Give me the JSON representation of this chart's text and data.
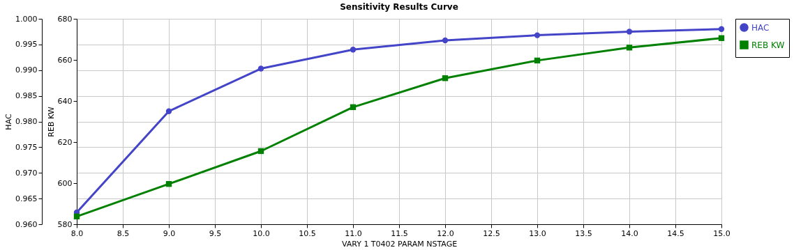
{
  "chart_data": {
    "type": "line",
    "title": "Sensitivity Results Curve",
    "xlabel": "VARY   1 T0402 PARAM NSTAGE",
    "ylabel": "HAC",
    "y2label": "REB KW",
    "x": [
      8,
      9,
      10,
      11,
      12,
      13,
      14,
      15
    ],
    "xlim": [
      8,
      15
    ],
    "xticks": [
      {
        "value": 8,
        "label": "8.0"
      },
      {
        "value": 8.5,
        "label": "8.5"
      },
      {
        "value": 9,
        "label": "9.0"
      },
      {
        "value": 9.5,
        "label": "9.5"
      },
      {
        "value": 10,
        "label": "10.0"
      },
      {
        "value": 10.5,
        "label": "10.5"
      },
      {
        "value": 11,
        "label": "11.0"
      },
      {
        "value": 11.5,
        "label": "11.5"
      },
      {
        "value": 12,
        "label": "12.0"
      },
      {
        "value": 12.5,
        "label": "12.5"
      },
      {
        "value": 13,
        "label": "13.0"
      },
      {
        "value": 13.5,
        "label": "13.5"
      },
      {
        "value": 14,
        "label": "14.0"
      },
      {
        "value": 14.5,
        "label": "14.5"
      },
      {
        "value": 15,
        "label": "15.0"
      }
    ],
    "ylim": [
      0.96,
      1.0
    ],
    "yticks": [
      {
        "value": 0.96,
        "label": "0.960"
      },
      0.965,
      {
        "value": 0.97,
        "label": "0.970"
      },
      0.975,
      {
        "value": 0.98,
        "label": "0.980"
      },
      0.985,
      {
        "value": 0.99,
        "label": "0.990"
      },
      0.995,
      {
        "value": 1,
        "label": "1.000"
      }
    ],
    "y2lim": [
      580,
      680
    ],
    "y2ticks": [
      580,
      600,
      620,
      640,
      660,
      680
    ],
    "series": [
      {
        "name": "HAC",
        "color": "#4444c8",
        "marker": "circle",
        "values": [
          0.9623,
          0.982,
          0.9903,
          0.994,
          0.9958,
          0.9968,
          0.9975,
          0.998
        ]
      },
      {
        "name": "REB KW",
        "color": "#008000",
        "marker": "square",
        "axis": "y2",
        "values": [
          583.8,
          599.6,
          615.6,
          637.0,
          651.1,
          659.7,
          666.0,
          670.6
        ]
      }
    ],
    "grid": true,
    "legend": "top right",
    "line_style": "solid"
  }
}
